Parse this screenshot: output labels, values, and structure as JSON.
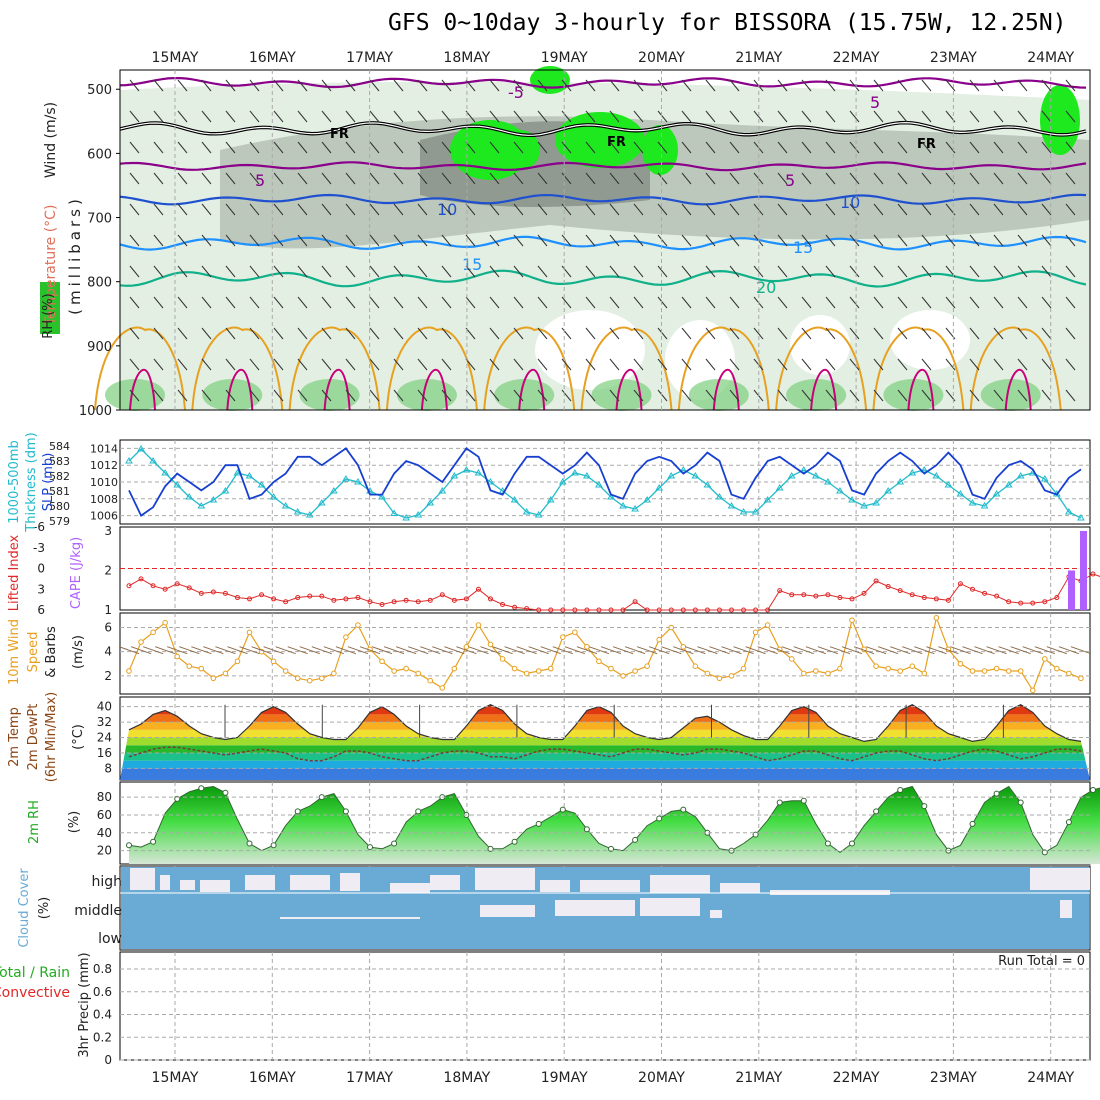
{
  "title": "GFS 0~10day 3-hourly for BISSORA (15.75W, 12.25N)",
  "days": [
    "15MAY",
    "16MAY",
    "17MAY",
    "18MAY",
    "19MAY",
    "20MAY",
    "21MAY",
    "22MAY",
    "23MAY",
    "24MAY"
  ],
  "colors": {
    "temp_iso": "#8b008b",
    "freeze": "#000000",
    "t10": "#1e50d0",
    "t15": "#1e90ff",
    "t20": "#10b08a",
    "warm": "#e8a020",
    "hot": "#c8007a",
    "rh_light": "#e2efe2",
    "rh_mid": "#bcc8bc",
    "rh_dark": "#909a90",
    "rh_green": "#1ee81e",
    "thick": "#22bbcc",
    "slp": "#1840d0",
    "li": "#e02828",
    "cape": "#b060ff",
    "wind": "#e8a020",
    "rh2m": "#22aa22",
    "cloud": "#6aabd6",
    "grid": "#aaaaaa"
  },
  "panels": {
    "profile": {
      "ylabel_wind": "Wind (m/s)",
      "ylabel_temp": "Temperature (°C)",
      "ylabel_rh": "RH (%)",
      "ylabel_p": "(millibars)",
      "ticks": [
        "500",
        "600",
        "700",
        "800",
        "900",
        "1000"
      ]
    },
    "thickness": {
      "label_a": "1000-500mb",
      "label_b": "Thickness (dm)",
      "label_c": "SLP (mb)",
      "left_ticks": [
        "584",
        "583",
        "582",
        "581",
        "580",
        "579"
      ],
      "right_ticks": [
        "1014",
        "1012",
        "1010",
        "1008",
        "1006"
      ]
    },
    "cape": {
      "label_a": "Lifted Index",
      "label_b": "CAPE (J/kg)",
      "left_ticks": [
        "-6",
        "-3",
        "0",
        "3",
        "6"
      ],
      "right_ticks": [
        "3",
        "2",
        "1"
      ]
    },
    "wind10": {
      "label_a": "10m Wind",
      "label_b": "Speed",
      "label_c": "& Barbs",
      "label_d": "(m/s)",
      "ticks": [
        "6",
        "4",
        "2"
      ]
    },
    "temp2m": {
      "label_a": "2m Temp",
      "label_b": "2m DewPt",
      "label_c": "(6hr Min/Max)",
      "label_d": "(°C)",
      "ticks": [
        "40",
        "32",
        "24",
        "16",
        "8"
      ]
    },
    "rh2m": {
      "label_a": "2m RH",
      "label_b": "(%)",
      "ticks": [
        "80",
        "60",
        "40",
        "20"
      ]
    },
    "cloud": {
      "label_a": "Cloud Cover",
      "label_b": "(%)",
      "levels": [
        "high",
        "middle",
        "low"
      ]
    },
    "precip": {
      "label_a": "Total / Rain",
      "label_b": "Convective",
      "label_c": "3hr Precip (mm)",
      "ticks": [
        "0.8",
        "0.6",
        "0.4",
        "0.2",
        "0"
      ],
      "run_total": "Run Total = 0"
    }
  },
  "chart_data": [
    {
      "type": "line",
      "name": "1000-500mb Thickness",
      "unit": "dm",
      "ylim": [
        579,
        584
      ],
      "x_step_hours": 3,
      "values": [
        583.0,
        583.8,
        583.0,
        582.2,
        581.4,
        580.6,
        580.0,
        580.4,
        581.0,
        582.2,
        582.0,
        581.4,
        580.6,
        580.0,
        579.6,
        579.4,
        580.2,
        581.0,
        581.8,
        581.6,
        581.0,
        580.6,
        579.5,
        579.2,
        579.4,
        580.2,
        581.0,
        582.0,
        582.4,
        582.2,
        581.6,
        581.0,
        580.4,
        579.6,
        579.4,
        580.4,
        581.6,
        582.2,
        582.0,
        581.4,
        580.6,
        580.0,
        579.8,
        580.4,
        581.2,
        582.0,
        582.4,
        582.0,
        581.4,
        580.6,
        580.0,
        579.6,
        579.6,
        580.4,
        581.2,
        582.0,
        582.4,
        582.0,
        581.6,
        581.0,
        580.4,
        580.0,
        580.2,
        581.0,
        581.6,
        582.2,
        582.4,
        582.0,
        581.4,
        580.8,
        580.2,
        580.0,
        580.8,
        581.4,
        582.0,
        582.2,
        581.8,
        580.8,
        579.6,
        579.2
      ]
    },
    {
      "type": "line",
      "name": "SLP",
      "unit": "mb",
      "ylim": [
        1006,
        1014
      ],
      "values": [
        1009,
        1006,
        1007,
        1009.5,
        1011,
        1010,
        1009,
        1010,
        1012,
        1012,
        1008,
        1008.5,
        1010,
        1011,
        1013,
        1013,
        1012,
        1013,
        1014,
        1012,
        1008.5,
        1008.5,
        1011,
        1012.5,
        1012,
        1011,
        1010,
        1012,
        1014,
        1013,
        1009,
        1008.5,
        1011,
        1013,
        1013,
        1012,
        1011,
        1012,
        1013.5,
        1012,
        1008.5,
        1008,
        1011,
        1012.5,
        1013,
        1012.5,
        1011,
        1012,
        1013.5,
        1012.5,
        1008.5,
        1008,
        1010.5,
        1012.5,
        1013,
        1012,
        1011,
        1012,
        1013.5,
        1012.5,
        1009,
        1008.5,
        1011,
        1012.5,
        1013.5,
        1012.5,
        1011,
        1012,
        1013.5,
        1012,
        1008.5,
        1008,
        1010.5,
        1012,
        1012.5,
        1011.5,
        1009,
        1008.5,
        1010.5,
        1011.5
      ]
    },
    {
      "type": "line",
      "name": "Lifted Index",
      "ylim": [
        -6,
        6
      ],
      "values": [
        2.5,
        1.5,
        2.5,
        3,
        2.2,
        2.8,
        3.6,
        3.4,
        3.6,
        4.2,
        4.4,
        3.8,
        4.4,
        4.8,
        4.2,
        4,
        4,
        4.6,
        4.4,
        4.2,
        4.8,
        5.2,
        4.8,
        4.6,
        4.8,
        4.6,
        3.8,
        4.6,
        4.4,
        3,
        4.4,
        5.2,
        5.6,
        5.8,
        6,
        6,
        6,
        6,
        6,
        6,
        6,
        6,
        4.8,
        6,
        6,
        6,
        6,
        6,
        6,
        6,
        6,
        6,
        6,
        6,
        3.2,
        3.8,
        3.8,
        4,
        3.8,
        4.2,
        4.4,
        3.6,
        1.8,
        2.6,
        3.2,
        3.8,
        4.2,
        4.4,
        4.6,
        2.2,
        3,
        3.6,
        4,
        4.8,
        5,
        5,
        4.8,
        4.2,
        1.2,
        1.8,
        0.8,
        1.4,
        1.8,
        2.2
      ]
    },
    {
      "type": "bar",
      "name": "CAPE",
      "unit": "J/kg",
      "ylim": [
        1,
        3
      ],
      "values_last": [
        2,
        3
      ]
    },
    {
      "type": "line",
      "name": "10m Wind Speed",
      "unit": "m/s",
      "ylim": [
        0,
        7
      ],
      "values": [
        2.4,
        4.8,
        5.6,
        6.4,
        3.6,
        2.8,
        2.6,
        1.8,
        2.2,
        3.2,
        5.6,
        4,
        3.2,
        2.4,
        1.8,
        1.6,
        1.8,
        2.2,
        5.2,
        6.2,
        4.2,
        3.2,
        2.4,
        2.6,
        2.2,
        1.6,
        1,
        2.6,
        4.4,
        6.2,
        4.6,
        3.4,
        2.6,
        2.2,
        2.4,
        2.6,
        5.2,
        5.6,
        4.4,
        3.2,
        2.6,
        2,
        2.4,
        2.8,
        5,
        6,
        4.4,
        2.8,
        2.2,
        1.8,
        2,
        2.6,
        5.6,
        6.2,
        4.2,
        3.4,
        2.2,
        2.4,
        2.2,
        2.6,
        6.6,
        4.2,
        2.8,
        2.6,
        2.4,
        2.8,
        2.2,
        6.8,
        4.2,
        3,
        2.4,
        2.4,
        2.6,
        2.4,
        2.4,
        0.8,
        3.4,
        2.6,
        2.2,
        1.8
      ]
    },
    {
      "type": "area",
      "name": "2m Temp",
      "unit": "°C",
      "ylim": [
        0,
        44
      ],
      "values": [
        28,
        31,
        36,
        38,
        35,
        30,
        26,
        24,
        23,
        24,
        30,
        37,
        40,
        37,
        31,
        26,
        24,
        23,
        23,
        29,
        37,
        40,
        36,
        30,
        26,
        24,
        23,
        23,
        30,
        38,
        41,
        38,
        31,
        26,
        24,
        23,
        23,
        30,
        38,
        40,
        37,
        30,
        26,
        24,
        23,
        24,
        29,
        34,
        35,
        32,
        28,
        25,
        23,
        23,
        30,
        38,
        40,
        37,
        30,
        26,
        24,
        22,
        23,
        30,
        38,
        41,
        37,
        30,
        26,
        24,
        22,
        23,
        30,
        38,
        41,
        37,
        30,
        26,
        23,
        22
      ]
    },
    {
      "type": "line",
      "name": "2m DewPt",
      "unit": "°C",
      "values": [
        14,
        16,
        18,
        19,
        19,
        18,
        17,
        16,
        15,
        16,
        17,
        18,
        17,
        16,
        13,
        12,
        12,
        14,
        17,
        17,
        16,
        14,
        13,
        12,
        12,
        14,
        16,
        17,
        17,
        16,
        14,
        14,
        13,
        15,
        17,
        18,
        18,
        17,
        16,
        15,
        14,
        16,
        18,
        18,
        17,
        16,
        15,
        16,
        18,
        18,
        17,
        16,
        14,
        12,
        13,
        15,
        17,
        17,
        15,
        13,
        12,
        14,
        16,
        17,
        17,
        15,
        13,
        12,
        13,
        15,
        17,
        18,
        17,
        15,
        13,
        14,
        16,
        18,
        18,
        17
      ]
    },
    {
      "type": "area",
      "name": "2m RH",
      "unit": "%",
      "ylim": [
        0,
        100
      ],
      "values": [
        26,
        24,
        30,
        62,
        78,
        86,
        90,
        92,
        85,
        55,
        28,
        20,
        26,
        48,
        64,
        70,
        80,
        84,
        64,
        38,
        24,
        22,
        28,
        52,
        64,
        70,
        80,
        84,
        60,
        36,
        22,
        22,
        30,
        44,
        50,
        58,
        66,
        62,
        44,
        28,
        22,
        20,
        32,
        48,
        56,
        64,
        66,
        58,
        40,
        22,
        20,
        28,
        38,
        54,
        74,
        76,
        76,
        50,
        28,
        18,
        28,
        48,
        64,
        80,
        88,
        92,
        70,
        38,
        20,
        26,
        50,
        74,
        84,
        92,
        74,
        38,
        18,
        26,
        52,
        80,
        88,
        92
      ]
    },
    {
      "type": "bar",
      "name": "3hr Precip",
      "unit": "mm",
      "ylim": [
        0,
        1
      ],
      "values": [],
      "run_total": 0
    }
  ]
}
